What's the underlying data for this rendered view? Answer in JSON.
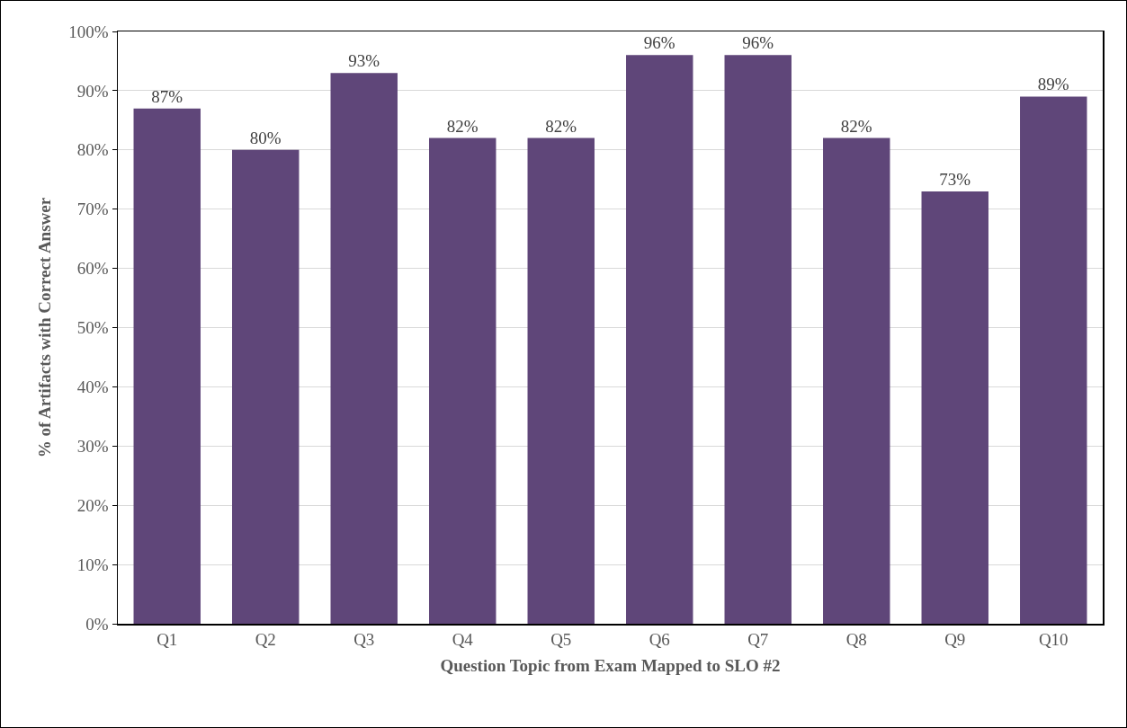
{
  "chart_data": {
    "type": "bar",
    "xlabel": "Question Topic from Exam Mapped to SLO #2",
    "ylabel": "% of Artifacts with Correct Answer",
    "categories": [
      "Q1",
      "Q2",
      "Q3",
      "Q4",
      "Q5",
      "Q6",
      "Q7",
      "Q8",
      "Q9",
      "Q10"
    ],
    "values": [
      87,
      80,
      93,
      82,
      82,
      96,
      96,
      82,
      73,
      89
    ],
    "value_labels": [
      "87%",
      "80%",
      "93%",
      "82%",
      "82%",
      "96%",
      "96%",
      "82%",
      "73%",
      "89%"
    ],
    "color": "#5f4679",
    "ylim": [
      0,
      100
    ],
    "yticks": [
      {
        "value": 0,
        "label": "0%"
      },
      {
        "value": 10,
        "label": "10%"
      },
      {
        "value": 20,
        "label": "20%"
      },
      {
        "value": 30,
        "label": "30%"
      },
      {
        "value": 40,
        "label": "40%"
      },
      {
        "value": 50,
        "label": "50%"
      },
      {
        "value": 60,
        "label": "60%"
      },
      {
        "value": 70,
        "label": "70%"
      },
      {
        "value": 80,
        "label": "80%"
      },
      {
        "value": 90,
        "label": "90%"
      },
      {
        "value": 100,
        "label": "100%"
      }
    ],
    "grid": "y"
  }
}
